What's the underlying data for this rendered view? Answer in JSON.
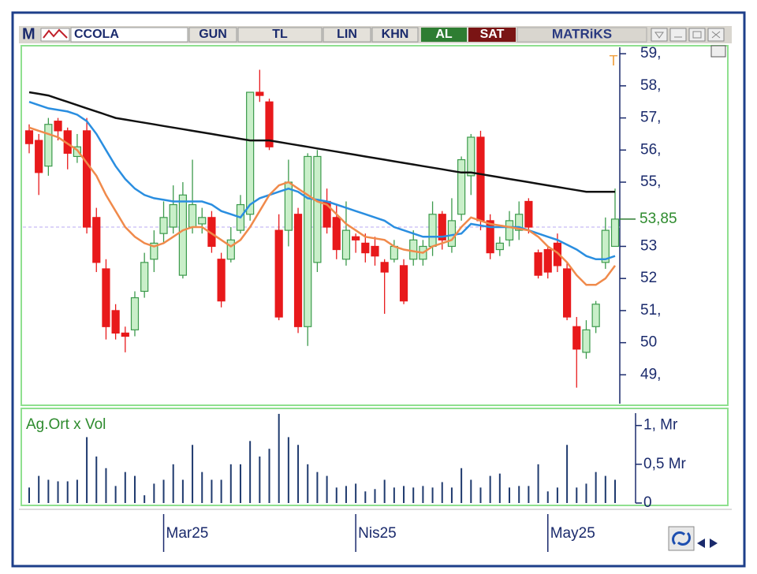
{
  "toolbar": {
    "logo": "M",
    "symbol": "CCOLA",
    "buttons": [
      "GUN",
      "TL",
      "LIN",
      "KHN"
    ],
    "buy": "AL",
    "sell": "SAT",
    "brand": "MATRiKS"
  },
  "chart_data": [
    {
      "type": "candlestick",
      "annotation": "T",
      "last_price_label": "53,85",
      "up_color": "#3c9a4c",
      "up_fill": "#c9efc9",
      "down_color": "#e8191b",
      "categories": [
        null,
        null,
        null,
        null,
        null,
        null,
        null,
        null,
        null,
        null,
        null,
        null,
        null,
        null,
        "Mar25",
        null,
        null,
        null,
        null,
        null,
        null,
        null,
        null,
        null,
        null,
        null,
        null,
        null,
        null,
        null,
        null,
        null,
        null,
        null,
        "Nis25",
        null,
        null,
        null,
        null,
        null,
        null,
        null,
        null,
        null,
        null,
        null,
        null,
        null,
        null,
        null,
        null,
        null,
        null,
        null,
        "May25",
        null,
        null,
        null,
        null,
        null,
        null,
        null
      ],
      "open": [
        56.6,
        56.3,
        55.5,
        56.9,
        56.6,
        55.8,
        56.6,
        53.9,
        52.3,
        51.0,
        50.3,
        50.4,
        51.6,
        52.6,
        53.4,
        53.6,
        52.1,
        53.6,
        53.7,
        53.9,
        52.6,
        52.6,
        53.5,
        54.0,
        57.8,
        57.5,
        53.5,
        53.5,
        54.0,
        50.5,
        52.5,
        54.4,
        53.9,
        52.6,
        53.3,
        53.1,
        53.0,
        52.5,
        52.6,
        52.4,
        52.6,
        52.6,
        53.0,
        54.0,
        53.0,
        54.0,
        55.2,
        56.4,
        53.8,
        52.9,
        53.2,
        53.5,
        54.4,
        52.8,
        52.9,
        53.1,
        52.3,
        50.5,
        49.7,
        50.5,
        52.5,
        53.0
      ],
      "high": [
        56.8,
        56.5,
        57.0,
        57.0,
        56.7,
        56.5,
        57.0,
        54.2,
        52.6,
        51.2,
        50.5,
        51.6,
        52.8,
        53.5,
        54.4,
        54.9,
        55.0,
        55.7,
        54.2,
        54.1,
        52.8,
        53.6,
        54.6,
        57.8,
        58.5,
        57.6,
        54.0,
        55.7,
        54.2,
        55.9,
        56.0,
        54.8,
        54.3,
        54.4,
        53.4,
        53.4,
        53.3,
        52.6,
        53.2,
        52.6,
        53.5,
        53.2,
        54.4,
        54.1,
        54.5,
        55.8,
        56.5,
        56.6,
        54.0,
        53.3,
        54.1,
        54.4,
        54.5,
        52.9,
        53.0,
        53.4,
        52.5,
        50.8,
        50.7,
        51.3,
        53.9,
        54.8
      ],
      "low": [
        55.9,
        54.6,
        55.2,
        56.3,
        55.4,
        55.6,
        53.4,
        52.2,
        50.1,
        50.1,
        49.7,
        50.2,
        51.4,
        52.2,
        53.1,
        53.4,
        52.0,
        53.4,
        53.4,
        52.8,
        51.1,
        52.5,
        53.4,
        53.8,
        57.5,
        56.0,
        50.7,
        53.0,
        50.3,
        49.9,
        52.2,
        53.4,
        52.6,
        52.4,
        52.8,
        52.5,
        52.4,
        50.9,
        52.5,
        51.2,
        52.4,
        52.4,
        52.7,
        52.9,
        52.8,
        53.8,
        54.6,
        53.5,
        52.6,
        52.7,
        53.0,
        53.2,
        53.4,
        52.0,
        52.0,
        52.2,
        50.7,
        48.6,
        49.5,
        50.3,
        52.3,
        53.0
      ],
      "close": [
        56.2,
        55.3,
        56.8,
        56.6,
        55.9,
        56.1,
        53.6,
        52.5,
        50.5,
        50.3,
        50.2,
        51.4,
        52.5,
        53.1,
        53.9,
        54.3,
        54.6,
        54.3,
        53.9,
        53.0,
        51.3,
        53.2,
        54.3,
        57.8,
        57.7,
        56.1,
        50.8,
        55.0,
        50.5,
        55.8,
        55.8,
        53.6,
        52.9,
        53.5,
        53.2,
        52.8,
        52.7,
        52.2,
        53.0,
        51.3,
        53.2,
        53.0,
        54.0,
        53.2,
        53.8,
        55.7,
        56.4,
        53.8,
        52.8,
        53.1,
        53.8,
        54.0,
        53.6,
        52.1,
        52.2,
        52.4,
        50.8,
        49.8,
        50.4,
        51.2,
        53.5,
        53.85
      ],
      "series": [
        {
          "color": "#111111",
          "values": [
            57.8,
            57.75,
            57.7,
            57.6,
            57.5,
            57.4,
            57.3,
            57.2,
            57.1,
            57.0,
            56.95,
            56.9,
            56.85,
            56.8,
            56.75,
            56.7,
            56.65,
            56.6,
            56.55,
            56.5,
            56.45,
            56.4,
            56.35,
            56.3,
            56.3,
            56.3,
            56.25,
            56.2,
            56.15,
            56.1,
            56.05,
            56.0,
            55.95,
            55.9,
            55.85,
            55.8,
            55.75,
            55.7,
            55.65,
            55.6,
            55.55,
            55.5,
            55.45,
            55.4,
            55.35,
            55.3,
            55.3,
            55.25,
            55.2,
            55.15,
            55.1,
            55.05,
            55.0,
            54.95,
            54.9,
            54.85,
            54.8,
            54.75,
            54.7,
            54.7,
            54.7,
            54.7
          ]
        },
        {
          "color": "#2a8ee0",
          "values": [
            57.5,
            57.4,
            57.3,
            57.25,
            57.2,
            57.1,
            56.9,
            56.5,
            56.0,
            55.5,
            55.1,
            54.8,
            54.6,
            54.5,
            54.45,
            54.4,
            54.4,
            54.4,
            54.4,
            54.3,
            54.1,
            54.0,
            53.9,
            54.3,
            54.5,
            54.6,
            54.7,
            54.8,
            54.7,
            54.5,
            54.45,
            54.4,
            54.3,
            54.2,
            54.1,
            54.0,
            53.9,
            53.8,
            53.6,
            53.5,
            53.4,
            53.3,
            53.3,
            53.3,
            53.35,
            53.4,
            53.7,
            53.65,
            53.6,
            53.6,
            53.6,
            53.6,
            53.5,
            53.4,
            53.3,
            53.2,
            53.05,
            52.9,
            52.7,
            52.6,
            52.6,
            52.7
          ]
        },
        {
          "color": "#f08a4b",
          "values": [
            56.7,
            56.6,
            56.5,
            56.4,
            56.2,
            56.0,
            55.6,
            55.2,
            54.6,
            54.1,
            53.6,
            53.3,
            53.1,
            53.0,
            53.1,
            53.3,
            53.5,
            53.6,
            53.6,
            53.4,
            53.2,
            53.0,
            53.2,
            53.6,
            54.1,
            54.6,
            54.9,
            55.0,
            54.8,
            54.6,
            54.4,
            54.3,
            54.0,
            53.7,
            53.5,
            53.3,
            53.25,
            53.2,
            53.0,
            52.9,
            52.85,
            52.8,
            53.0,
            53.1,
            53.2,
            53.6,
            53.9,
            53.8,
            53.7,
            53.65,
            53.6,
            53.55,
            53.5,
            53.3,
            53.0,
            52.8,
            52.5,
            52.1,
            51.8,
            51.8,
            52.0,
            52.4
          ]
        }
      ],
      "ref_line": 53.6,
      "ylim": [
        48.1,
        59.2
      ],
      "yticks": [
        {
          "value": 59,
          "label": "59,"
        },
        {
          "value": 58,
          "label": "58,"
        },
        {
          "value": 57,
          "label": "57,"
        },
        {
          "value": 56,
          "label": "56,"
        },
        {
          "value": 55,
          "label": "55,"
        },
        53,
        52,
        {
          "value": 51,
          "label": "51,"
        },
        50,
        {
          "value": 49,
          "label": "49,"
        }
      ]
    },
    {
      "type": "bar",
      "title": "Ag.Ort x Vol",
      "color": "#1f3a6e",
      "values": [
        0.2,
        0.35,
        0.3,
        0.28,
        0.28,
        0.3,
        0.85,
        0.6,
        0.45,
        0.22,
        0.4,
        0.35,
        0.1,
        0.25,
        0.3,
        0.5,
        0.3,
        0.75,
        0.4,
        0.3,
        0.3,
        0.5,
        0.5,
        0.8,
        0.6,
        0.7,
        1.15,
        0.85,
        0.75,
        0.5,
        0.4,
        0.35,
        0.2,
        0.22,
        0.25,
        0.15,
        0.18,
        0.3,
        0.2,
        0.22,
        0.2,
        0.22,
        0.2,
        0.27,
        0.2,
        0.45,
        0.3,
        0.2,
        0.35,
        0.38,
        0.2,
        0.22,
        0.22,
        0.5,
        0.15,
        0.2,
        0.75,
        0.2,
        0.25,
        0.4,
        0.35,
        0.3
      ],
      "ylim": [
        0,
        1.2
      ],
      "yticks": [
        {
          "value": 1,
          "label": "1, Mr"
        },
        {
          "value": 0.5,
          "label": "0,5 Mr"
        },
        0
      ]
    }
  ]
}
